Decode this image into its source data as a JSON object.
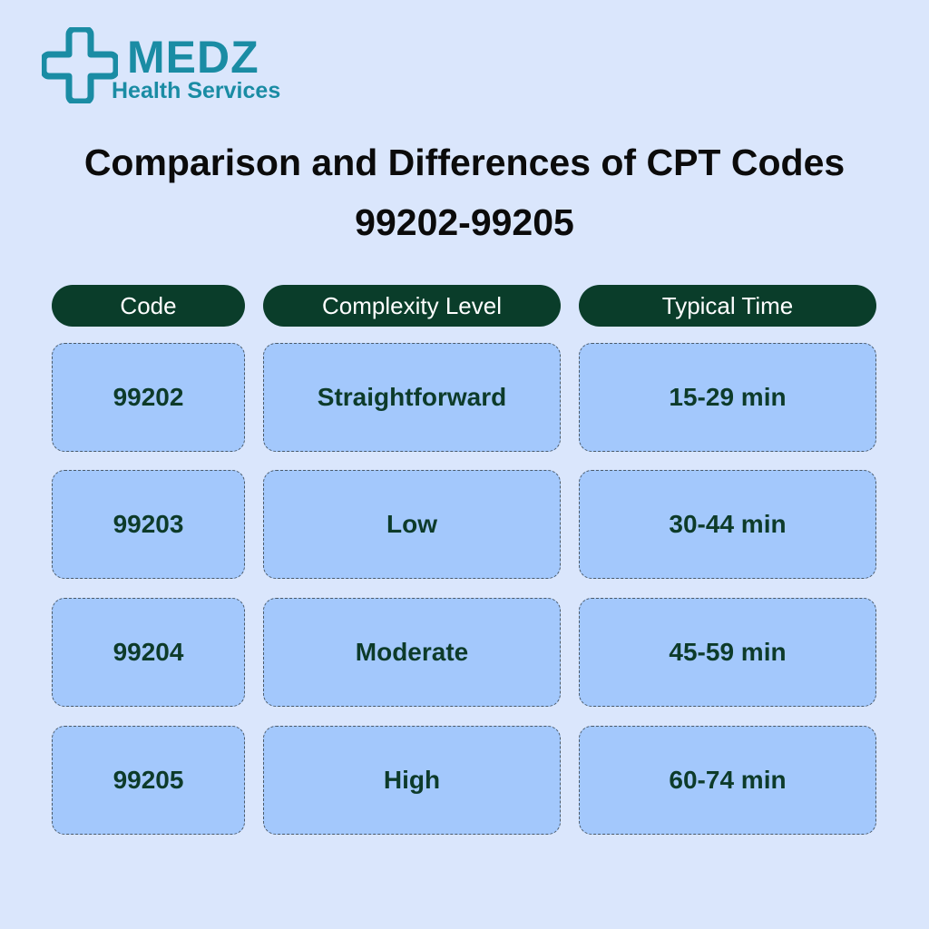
{
  "header": {
    "brand": "MEDZ",
    "tagline": "Health Services"
  },
  "title": "Comparison and Differences of CPT Codes 99202-99205",
  "table": {
    "columns": [
      "Code",
      "Complexity Level",
      "Typical Time"
    ],
    "rows": [
      [
        "99202",
        "Straightforward",
        "15-29 min"
      ],
      [
        "99203",
        "Low",
        "30-44 min"
      ],
      [
        "99204",
        "Moderate",
        "45-59 min"
      ],
      [
        "99205",
        "High",
        "60-74 min"
      ]
    ]
  }
}
